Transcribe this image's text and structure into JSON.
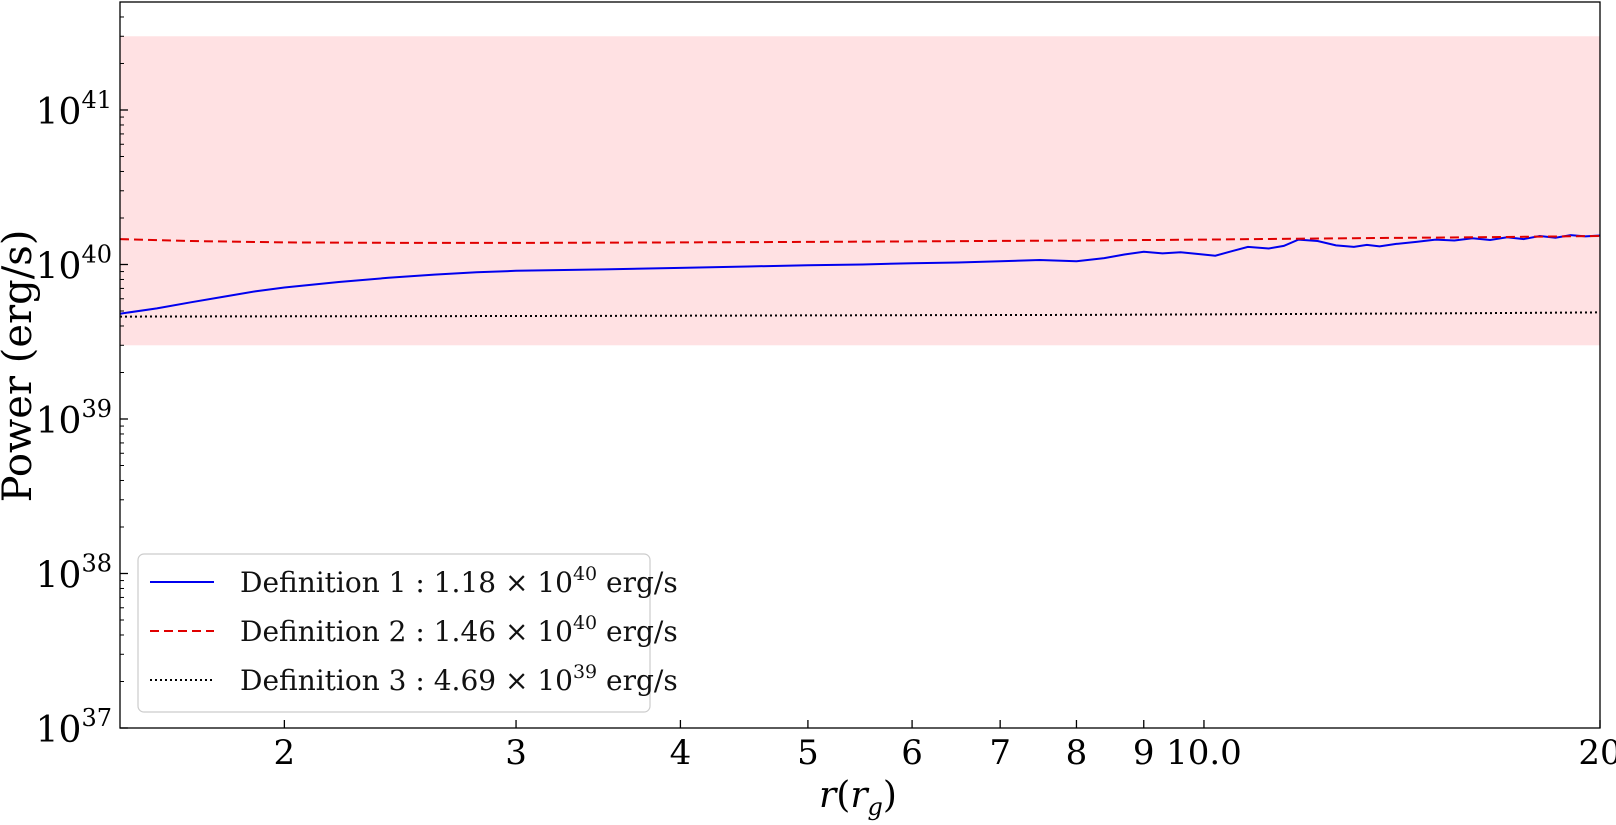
{
  "chart_data": {
    "type": "line",
    "xlabel": "r(r_g)",
    "xlabel_main": "r",
    "xlabel_paren_open": "(",
    "xlabel_var": "r",
    "xlabel_sub": "g",
    "xlabel_paren_close": ")",
    "ylabel": "Power (erg/s)",
    "x_scale": "log",
    "y_scale": "log",
    "xlim": [
      1.5,
      20
    ],
    "ylim": [
      1e+37,
      5e+41
    ],
    "x_ticks": [
      {
        "value": 2,
        "label": "2"
      },
      {
        "value": 3,
        "label": "3"
      },
      {
        "value": 4,
        "label": "4"
      },
      {
        "value": 5,
        "label": "5"
      },
      {
        "value": 6,
        "label": "6"
      },
      {
        "value": 7,
        "label": "7"
      },
      {
        "value": 8,
        "label": "8"
      },
      {
        "value": 9,
        "label": "9"
      },
      {
        "value": 10,
        "label": "10.0"
      },
      {
        "value": 20,
        "label": "20"
      }
    ],
    "y_ticks": [
      {
        "value": 1e+37,
        "base": "10",
        "exp": "37"
      },
      {
        "value": 1e+38,
        "base": "10",
        "exp": "38"
      },
      {
        "value": 1e+39,
        "base": "10",
        "exp": "39"
      },
      {
        "value": 1e+40,
        "base": "10",
        "exp": "40"
      },
      {
        "value": 1e+41,
        "base": "10",
        "exp": "41"
      }
    ],
    "shaded_band": {
      "y_min": 3e+39,
      "y_max": 3e+41,
      "color": "#ffe1e3"
    },
    "legend_position": "lower-left",
    "series": [
      {
        "name": "Definition 1",
        "legend_value": "1.18",
        "legend_base": "10",
        "legend_exp": "40",
        "legend_unit": "erg/s",
        "color": "#0000ee",
        "dash": "solid",
        "x": [
          1.5,
          1.6,
          1.7,
          1.8,
          1.9,
          2.0,
          2.2,
          2.4,
          2.6,
          2.8,
          3.0,
          3.5,
          4.0,
          4.5,
          5.0,
          5.5,
          6.0,
          6.5,
          7.0,
          7.5,
          8.0,
          8.4,
          8.7,
          9.0,
          9.3,
          9.6,
          9.9,
          10.2,
          10.5,
          10.8,
          11.2,
          11.5,
          11.8,
          12.2,
          12.6,
          13.0,
          13.3,
          13.6,
          14.0,
          14.5,
          15.0,
          15.5,
          16.0,
          16.5,
          17.0,
          17.5,
          18.0,
          18.5,
          19.0,
          19.5,
          20.0
        ],
        "y": [
          4.8e+39,
          5.2e+39,
          5.7e+39,
          6.2e+39,
          6.7e+39,
          7.1e+39,
          7.7e+39,
          8.2e+39,
          8.6e+39,
          8.9e+39,
          9.1e+39,
          9.3e+39,
          9.5e+39,
          9.7e+39,
          9.9e+39,
          1e+40,
          1.02e+40,
          1.03e+40,
          1.05e+40,
          1.07e+40,
          1.05e+40,
          1.1e+40,
          1.16e+40,
          1.21e+40,
          1.18e+40,
          1.2e+40,
          1.17e+40,
          1.14e+40,
          1.22e+40,
          1.3e+40,
          1.27e+40,
          1.32e+40,
          1.45e+40,
          1.42e+40,
          1.33e+40,
          1.3e+40,
          1.34e+40,
          1.31e+40,
          1.36e+40,
          1.4e+40,
          1.45e+40,
          1.43e+40,
          1.48e+40,
          1.44e+40,
          1.5e+40,
          1.46e+40,
          1.53e+40,
          1.49e+40,
          1.55e+40,
          1.52e+40,
          1.54e+40
        ]
      },
      {
        "name": "Definition 2",
        "legend_value": "1.46",
        "legend_base": "10",
        "legend_exp": "40",
        "legend_unit": "erg/s",
        "color": "#e00000",
        "dash": "dashed",
        "x": [
          1.5,
          1.7,
          2.0,
          2.5,
          3.0,
          4.0,
          5.0,
          6.0,
          8.0,
          10.0,
          13.0,
          16.0,
          20.0
        ],
        "y": [
          1.46e+40,
          1.42e+40,
          1.39e+40,
          1.38e+40,
          1.38e+40,
          1.39e+40,
          1.4e+40,
          1.41e+40,
          1.43e+40,
          1.45e+40,
          1.48e+40,
          1.5e+40,
          1.53e+40
        ]
      },
      {
        "name": "Definition 3",
        "legend_value": "4.69",
        "legend_base": "10",
        "legend_exp": "39",
        "legend_unit": "erg/s",
        "color": "#000000",
        "dash": "dotted",
        "x": [
          1.5,
          2.0,
          3.0,
          4.0,
          5.0,
          6.0,
          8.0,
          10.0,
          13.0,
          16.0,
          20.0
        ],
        "y": [
          4.6e+39,
          4.62e+39,
          4.64e+39,
          4.66e+39,
          4.68e+39,
          4.7e+39,
          4.72e+39,
          4.75e+39,
          4.8e+39,
          4.84e+39,
          4.9e+39
        ]
      }
    ]
  }
}
